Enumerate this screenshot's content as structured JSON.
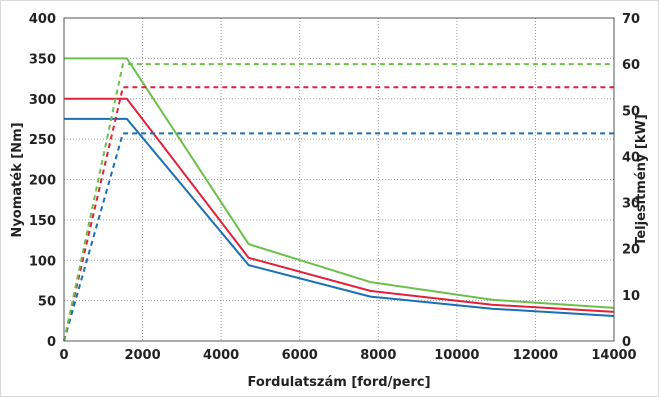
{
  "chart_data": {
    "type": "line",
    "xlabel": "Fordulatszám [ford/perc]",
    "ylabel_left": "Nyomaték [Nm]",
    "ylabel_right": "Teljesítmény [kW]",
    "xlim": [
      0,
      14000
    ],
    "ylim_left": [
      0,
      400
    ],
    "ylim_right": [
      0,
      70
    ],
    "x_ticks": [
      "0",
      "2000",
      "4000",
      "6000",
      "8000",
      "10000",
      "12000",
      "14000"
    ],
    "y_ticks_left": [
      "0",
      "50",
      "100",
      "150",
      "200",
      "250",
      "300",
      "350",
      "400"
    ],
    "y_ticks_right": [
      "0",
      "10",
      "20",
      "30",
      "40",
      "50",
      "60",
      "70"
    ],
    "grid": true,
    "series": [
      {
        "axis": "left",
        "style": "solid",
        "color": "#1a6fb5",
        "x": [
          0,
          1600,
          4700,
          7800,
          10900,
          14000
        ],
        "y": [
          275,
          275,
          94,
          55,
          40,
          31
        ]
      },
      {
        "axis": "left",
        "style": "solid",
        "color": "#e3203b",
        "x": [
          0,
          1600,
          4700,
          7800,
          10900,
          14000
        ],
        "y": [
          300,
          300,
          103,
          62,
          45,
          36
        ]
      },
      {
        "axis": "left",
        "style": "solid",
        "color": "#6cc04a",
        "x": [
          0,
          1600,
          4700,
          7800,
          10900,
          14000
        ],
        "y": [
          350,
          350,
          120,
          73,
          51,
          41
        ]
      },
      {
        "axis": "right",
        "style": "dashed",
        "color": "#1a6fb5",
        "x": [
          0,
          1500,
          14000
        ],
        "y": [
          0,
          45,
          45
        ]
      },
      {
        "axis": "right",
        "style": "dashed",
        "color": "#e3203b",
        "x": [
          0,
          1500,
          14000
        ],
        "y": [
          0,
          55,
          55
        ]
      },
      {
        "axis": "right",
        "style": "dashed",
        "color": "#6cc04a",
        "x": [
          0,
          1500,
          14000
        ],
        "y": [
          0,
          60,
          60
        ]
      }
    ]
  }
}
